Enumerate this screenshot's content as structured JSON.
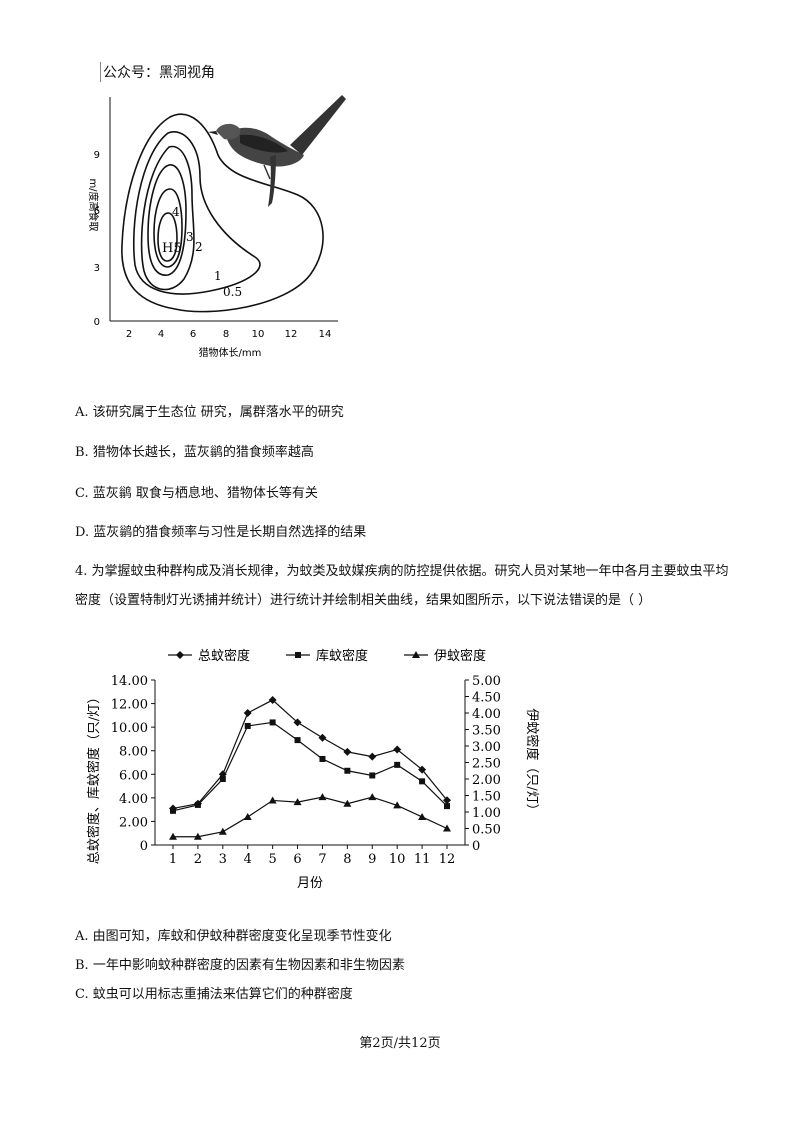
{
  "watermark": "公众号：黑洞视角",
  "figure1": {
    "ylabel": "m/度高食取",
    "xlabel": "猎物体长/mm",
    "yticks": [
      "0",
      "3",
      "6",
      "9"
    ],
    "xticks": [
      "2",
      "4",
      "6",
      "8",
      "10",
      "12",
      "14"
    ],
    "contour_labels": [
      "H5",
      "4",
      "3",
      "2",
      "1",
      "0.5"
    ]
  },
  "options_q3": [
    "A. 该研究属于生态位   研究，属群落水平的研究",
    "B. 猎物体长越长，蓝灰鹟的猎食频率越高",
    "C. 蓝灰鹟   取食与栖息地、猎物体长等有关",
    "D. 蓝灰鹟的猎食频率与习性是长期自然选择的结果"
  ],
  "question4": {
    "text": "4. 为掌握蚊虫种群构成及消长规律，为蚊类及蚊媒疾病的防控提供依据。研究人员对某地一年中各月主要蚊虫平均密度（设置特制灯光诱捕并统计）进行统计并绘制相关曲线，结果如图所示，以下说法错误的是（      ）"
  },
  "chart_data": {
    "type": "line",
    "x": [
      1,
      2,
      3,
      4,
      5,
      6,
      7,
      8,
      9,
      10,
      11,
      12
    ],
    "xlabel": "月份",
    "ylabel_left": "总蚊密度、库蚊密度（只/灯）",
    "ylabel_right": "伊蚊密度（只/灯）",
    "ylim_left": [
      0,
      14
    ],
    "ylim_right": [
      0,
      5
    ],
    "yticks_left": [
      "0",
      "2.00",
      "4.00",
      "6.00",
      "8.00",
      "10.00",
      "12.00",
      "14.00"
    ],
    "yticks_right": [
      "0",
      "0.50",
      "1.00",
      "1.50",
      "2.00",
      "2.50",
      "3.00",
      "3.50",
      "4.00",
      "4.50",
      "5.00"
    ],
    "legend_position": "top",
    "series": [
      {
        "name": "总蚊密度",
        "axis": "left",
        "marker": "diamond",
        "values": [
          3.1,
          3.5,
          6.0,
          11.2,
          12.3,
          10.4,
          9.1,
          7.9,
          7.5,
          8.1,
          6.4,
          3.8
        ]
      },
      {
        "name": "库蚊密度",
        "axis": "left",
        "marker": "square",
        "values": [
          2.9,
          3.4,
          5.6,
          10.1,
          10.4,
          8.9,
          7.3,
          6.3,
          5.9,
          6.8,
          5.4,
          3.3
        ]
      },
      {
        "name": "伊蚊密度",
        "axis": "right",
        "marker": "triangle",
        "values": [
          0.25,
          0.25,
          0.4,
          0.85,
          1.35,
          1.3,
          1.45,
          1.25,
          1.45,
          1.2,
          0.85,
          0.5
        ]
      }
    ]
  },
  "options_q4": [
    "A. 由图可知，库蚊和伊蚊种群密度变化呈现季节性变化",
    "B. 一年中影响蚊种群密度的因素有生物因素和非生物因素",
    "C. 蚊虫可以用标志重捕法来估算它们的种群密度"
  ],
  "footer": "第2页/共12页"
}
